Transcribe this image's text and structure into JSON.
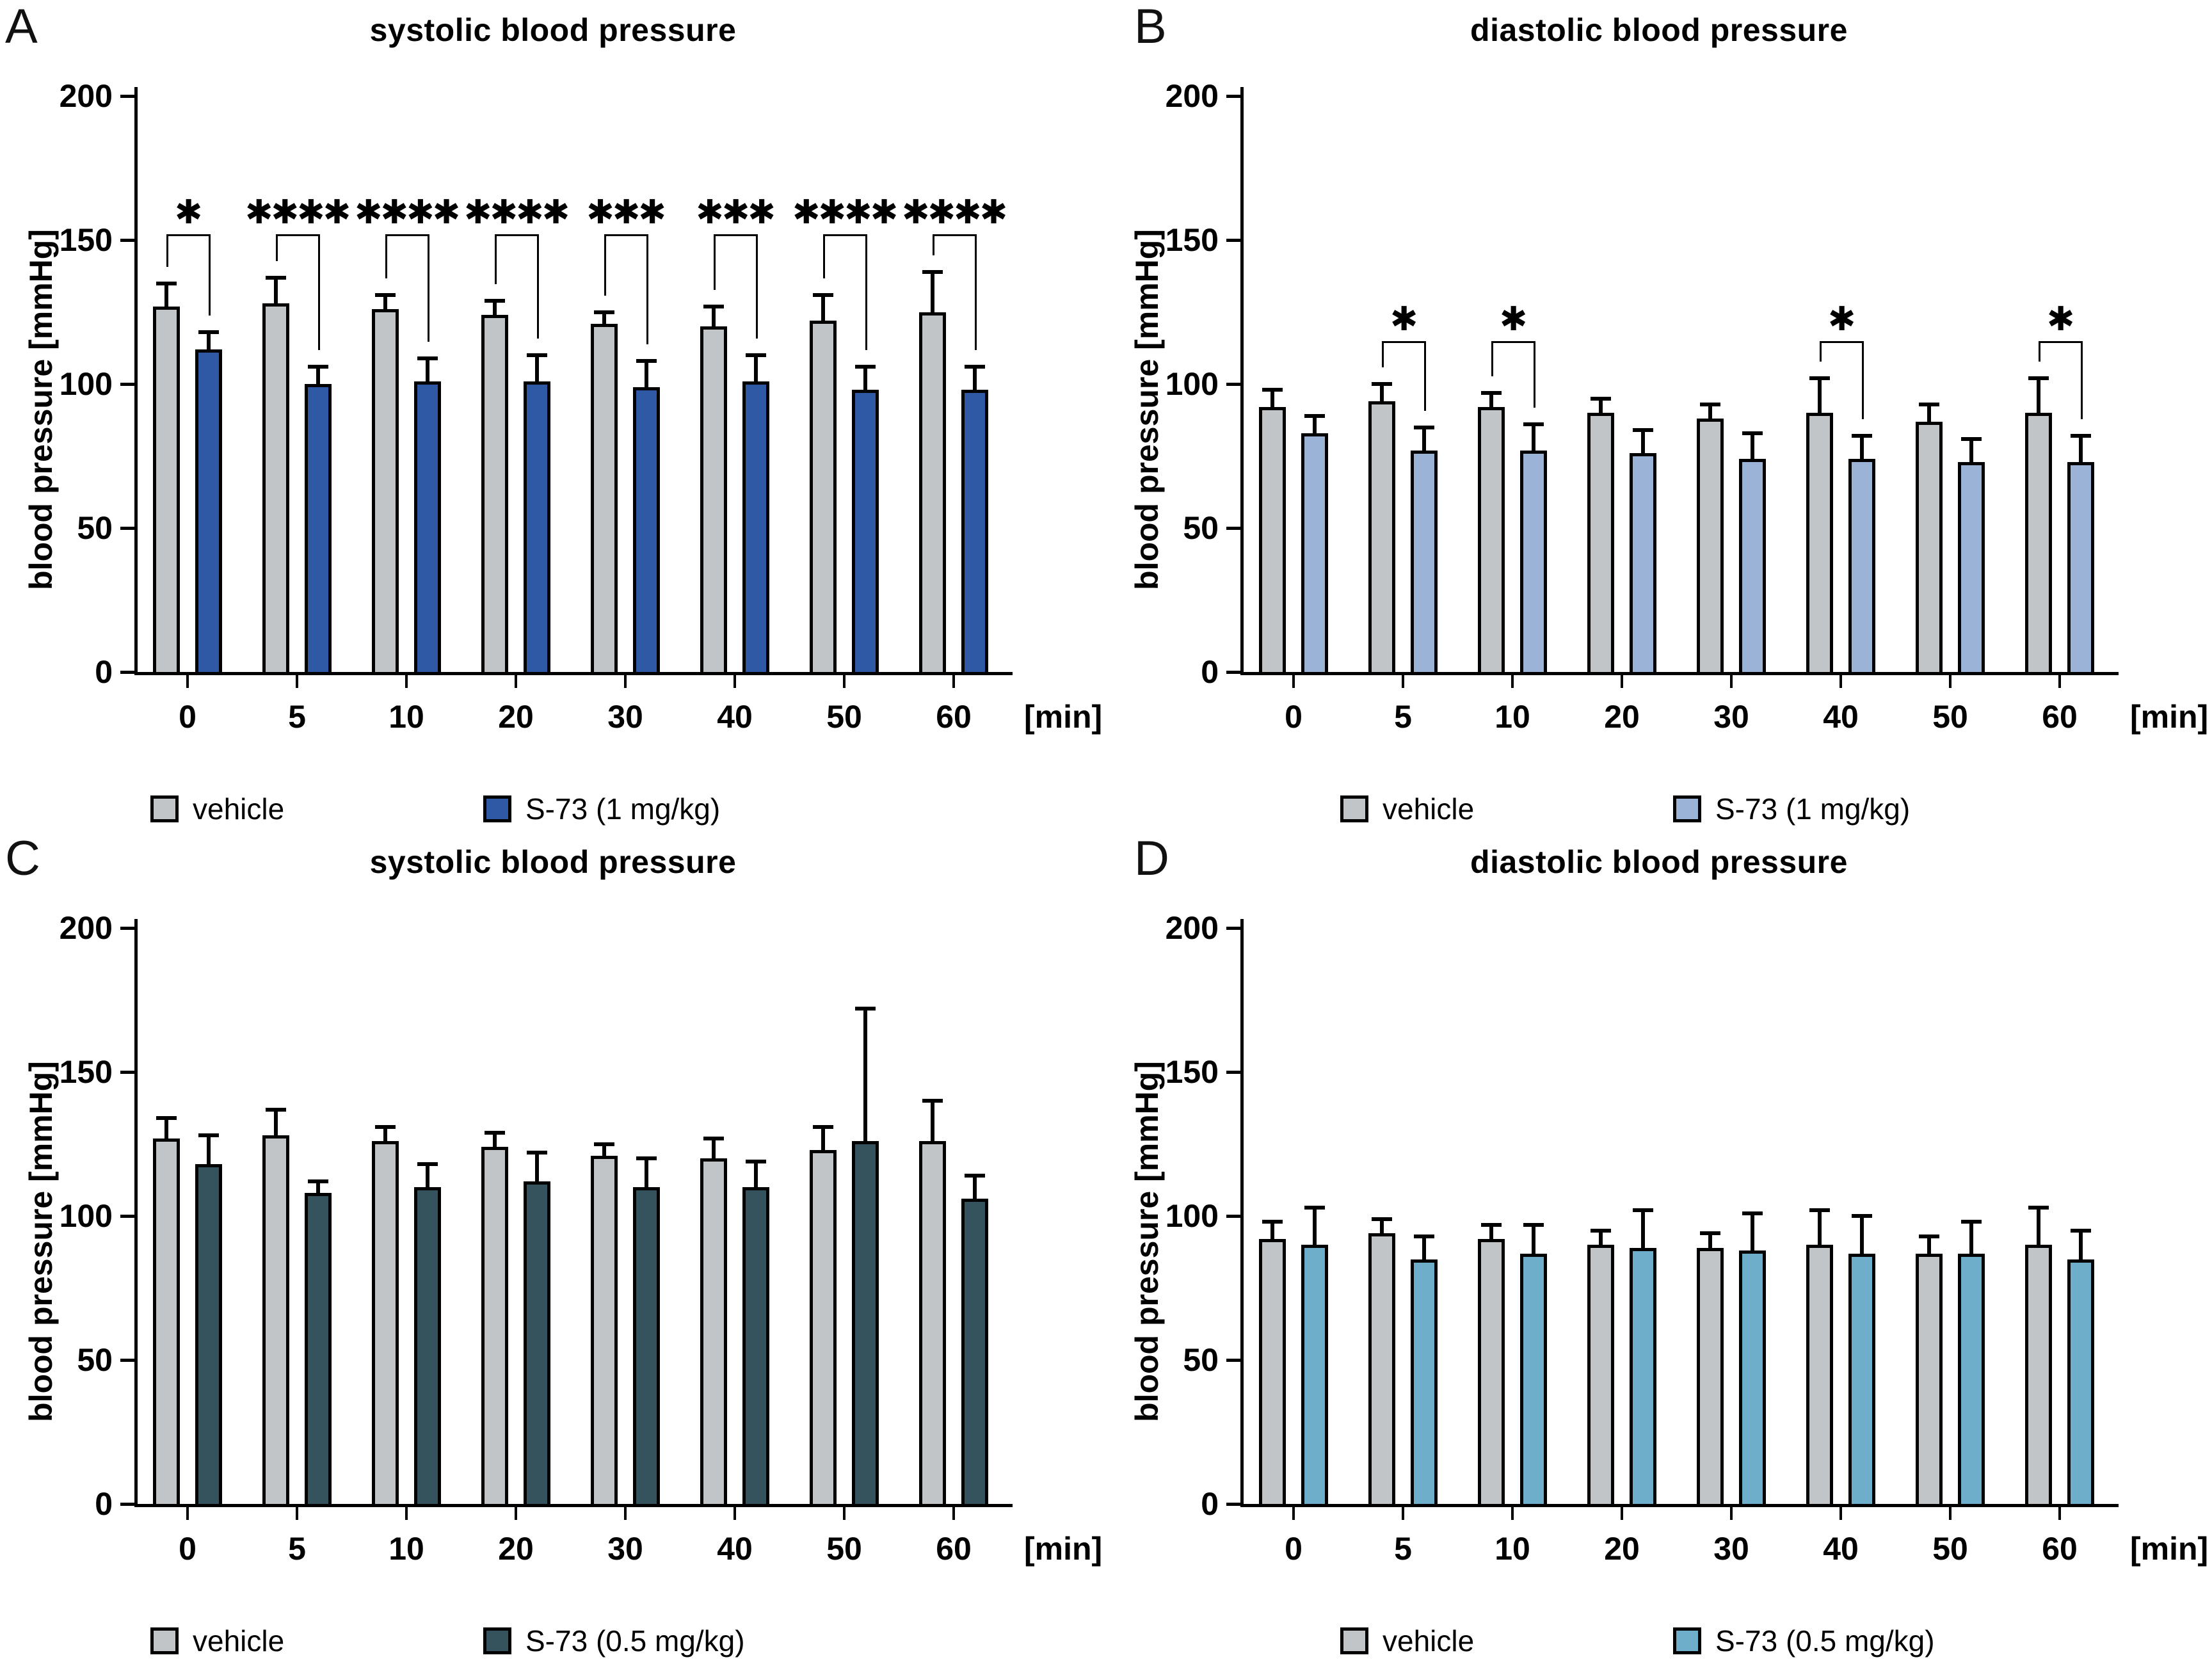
{
  "figure_background": "#ffffff",
  "chart_data": [
    {
      "panel_label": "A",
      "type": "bar",
      "title": "systolic blood pressure",
      "ylabel": "blood pressure [mmHg]",
      "x_unit_label": "[min]",
      "categories": [
        "0",
        "5",
        "10",
        "20",
        "30",
        "40",
        "50",
        "60"
      ],
      "ylim": [
        0,
        200
      ],
      "yticks": [
        0,
        50,
        100,
        150,
        200
      ],
      "grid": false,
      "legend_position": "bottom",
      "error_bar_style": "upper-sd-cap",
      "series": [
        {
          "name": "vehicle",
          "color": "#c1c5c8",
          "values": [
            127,
            128,
            126,
            124,
            121,
            120,
            122,
            125
          ],
          "errors_plus": [
            8,
            9,
            5,
            5,
            4,
            7,
            9,
            14
          ]
        },
        {
          "name": "S-73 (1 mg/kg)",
          "color": "#2f59a4",
          "values": [
            112,
            100,
            101,
            101,
            99,
            101,
            98,
            98
          ],
          "errors_plus": [
            6,
            6,
            8,
            9,
            9,
            9,
            8,
            8
          ]
        }
      ],
      "sig_bracket_y": 152,
      "significance": [
        {
          "group_index": 0,
          "stars": "*"
        },
        {
          "group_index": 1,
          "stars": "****"
        },
        {
          "group_index": 2,
          "stars": "****"
        },
        {
          "group_index": 3,
          "stars": "****"
        },
        {
          "group_index": 4,
          "stars": "***"
        },
        {
          "group_index": 5,
          "stars": "***"
        },
        {
          "group_index": 6,
          "stars": "****"
        },
        {
          "group_index": 7,
          "stars": "****"
        }
      ]
    },
    {
      "panel_label": "B",
      "type": "bar",
      "title": "diastolic blood pressure",
      "ylabel": "blood pressure [mmHg]",
      "x_unit_label": "[min]",
      "categories": [
        "0",
        "5",
        "10",
        "20",
        "30",
        "40",
        "50",
        "60"
      ],
      "ylim": [
        0,
        200
      ],
      "yticks": [
        0,
        50,
        100,
        150,
        200
      ],
      "grid": false,
      "legend_position": "bottom",
      "error_bar_style": "upper-sd-cap",
      "series": [
        {
          "name": "vehicle",
          "color": "#c1c5c8",
          "values": [
            92,
            94,
            92,
            90,
            88,
            90,
            87,
            90
          ],
          "errors_plus": [
            6,
            6,
            5,
            5,
            5,
            12,
            6,
            12
          ]
        },
        {
          "name": "S-73 (1 mg/kg)",
          "color": "#9ab3d6",
          "values": [
            83,
            77,
            77,
            76,
            74,
            74,
            73,
            73
          ],
          "errors_plus": [
            6,
            8,
            9,
            8,
            9,
            8,
            8,
            9
          ]
        }
      ],
      "sig_bracket_y": 115,
      "significance": [
        {
          "group_index": 1,
          "stars": "*"
        },
        {
          "group_index": 2,
          "stars": "*"
        },
        {
          "group_index": 5,
          "stars": "*"
        },
        {
          "group_index": 7,
          "stars": "*"
        }
      ]
    },
    {
      "panel_label": "C",
      "type": "bar",
      "title": "systolic blood pressure",
      "ylabel": "blood pressure [mmHg]",
      "x_unit_label": "[min]",
      "categories": [
        "0",
        "5",
        "10",
        "20",
        "30",
        "40",
        "50",
        "60"
      ],
      "ylim": [
        0,
        200
      ],
      "yticks": [
        0,
        50,
        100,
        150,
        200
      ],
      "grid": false,
      "legend_position": "bottom",
      "error_bar_style": "upper-sd-cap",
      "series": [
        {
          "name": "vehicle",
          "color": "#c1c5c8",
          "values": [
            127,
            128,
            126,
            124,
            121,
            120,
            123,
            126
          ],
          "errors_plus": [
            7,
            9,
            5,
            5,
            4,
            7,
            8,
            14
          ]
        },
        {
          "name": "S-73 (0.5 mg/kg)",
          "color": "#35535d",
          "values": [
            118,
            108,
            110,
            112,
            110,
            110,
            126,
            106
          ],
          "errors_plus": [
            10,
            4,
            8,
            10,
            10,
            9,
            46,
            8
          ]
        }
      ],
      "sig_bracket_y": 152,
      "significance": []
    },
    {
      "panel_label": "D",
      "type": "bar",
      "title": "diastolic blood pressure",
      "ylabel": "blood pressure [mmHg]",
      "x_unit_label": "[min]",
      "categories": [
        "0",
        "5",
        "10",
        "20",
        "30",
        "40",
        "50",
        "60"
      ],
      "ylim": [
        0,
        200
      ],
      "yticks": [
        0,
        50,
        100,
        150,
        200
      ],
      "grid": false,
      "legend_position": "bottom",
      "error_bar_style": "upper-sd-cap",
      "series": [
        {
          "name": "vehicle",
          "color": "#c1c5c8",
          "values": [
            92,
            94,
            92,
            90,
            89,
            90,
            87,
            90
          ],
          "errors_plus": [
            6,
            5,
            5,
            5,
            5,
            12,
            6,
            13
          ]
        },
        {
          "name": "S-73 (0.5 mg/kg)",
          "color": "#6faecb",
          "values": [
            90,
            85,
            87,
            89,
            88,
            87,
            87,
            85
          ],
          "errors_plus": [
            13,
            8,
            10,
            13,
            13,
            13,
            11,
            10
          ]
        }
      ],
      "sig_bracket_y": 115,
      "significance": []
    }
  ]
}
